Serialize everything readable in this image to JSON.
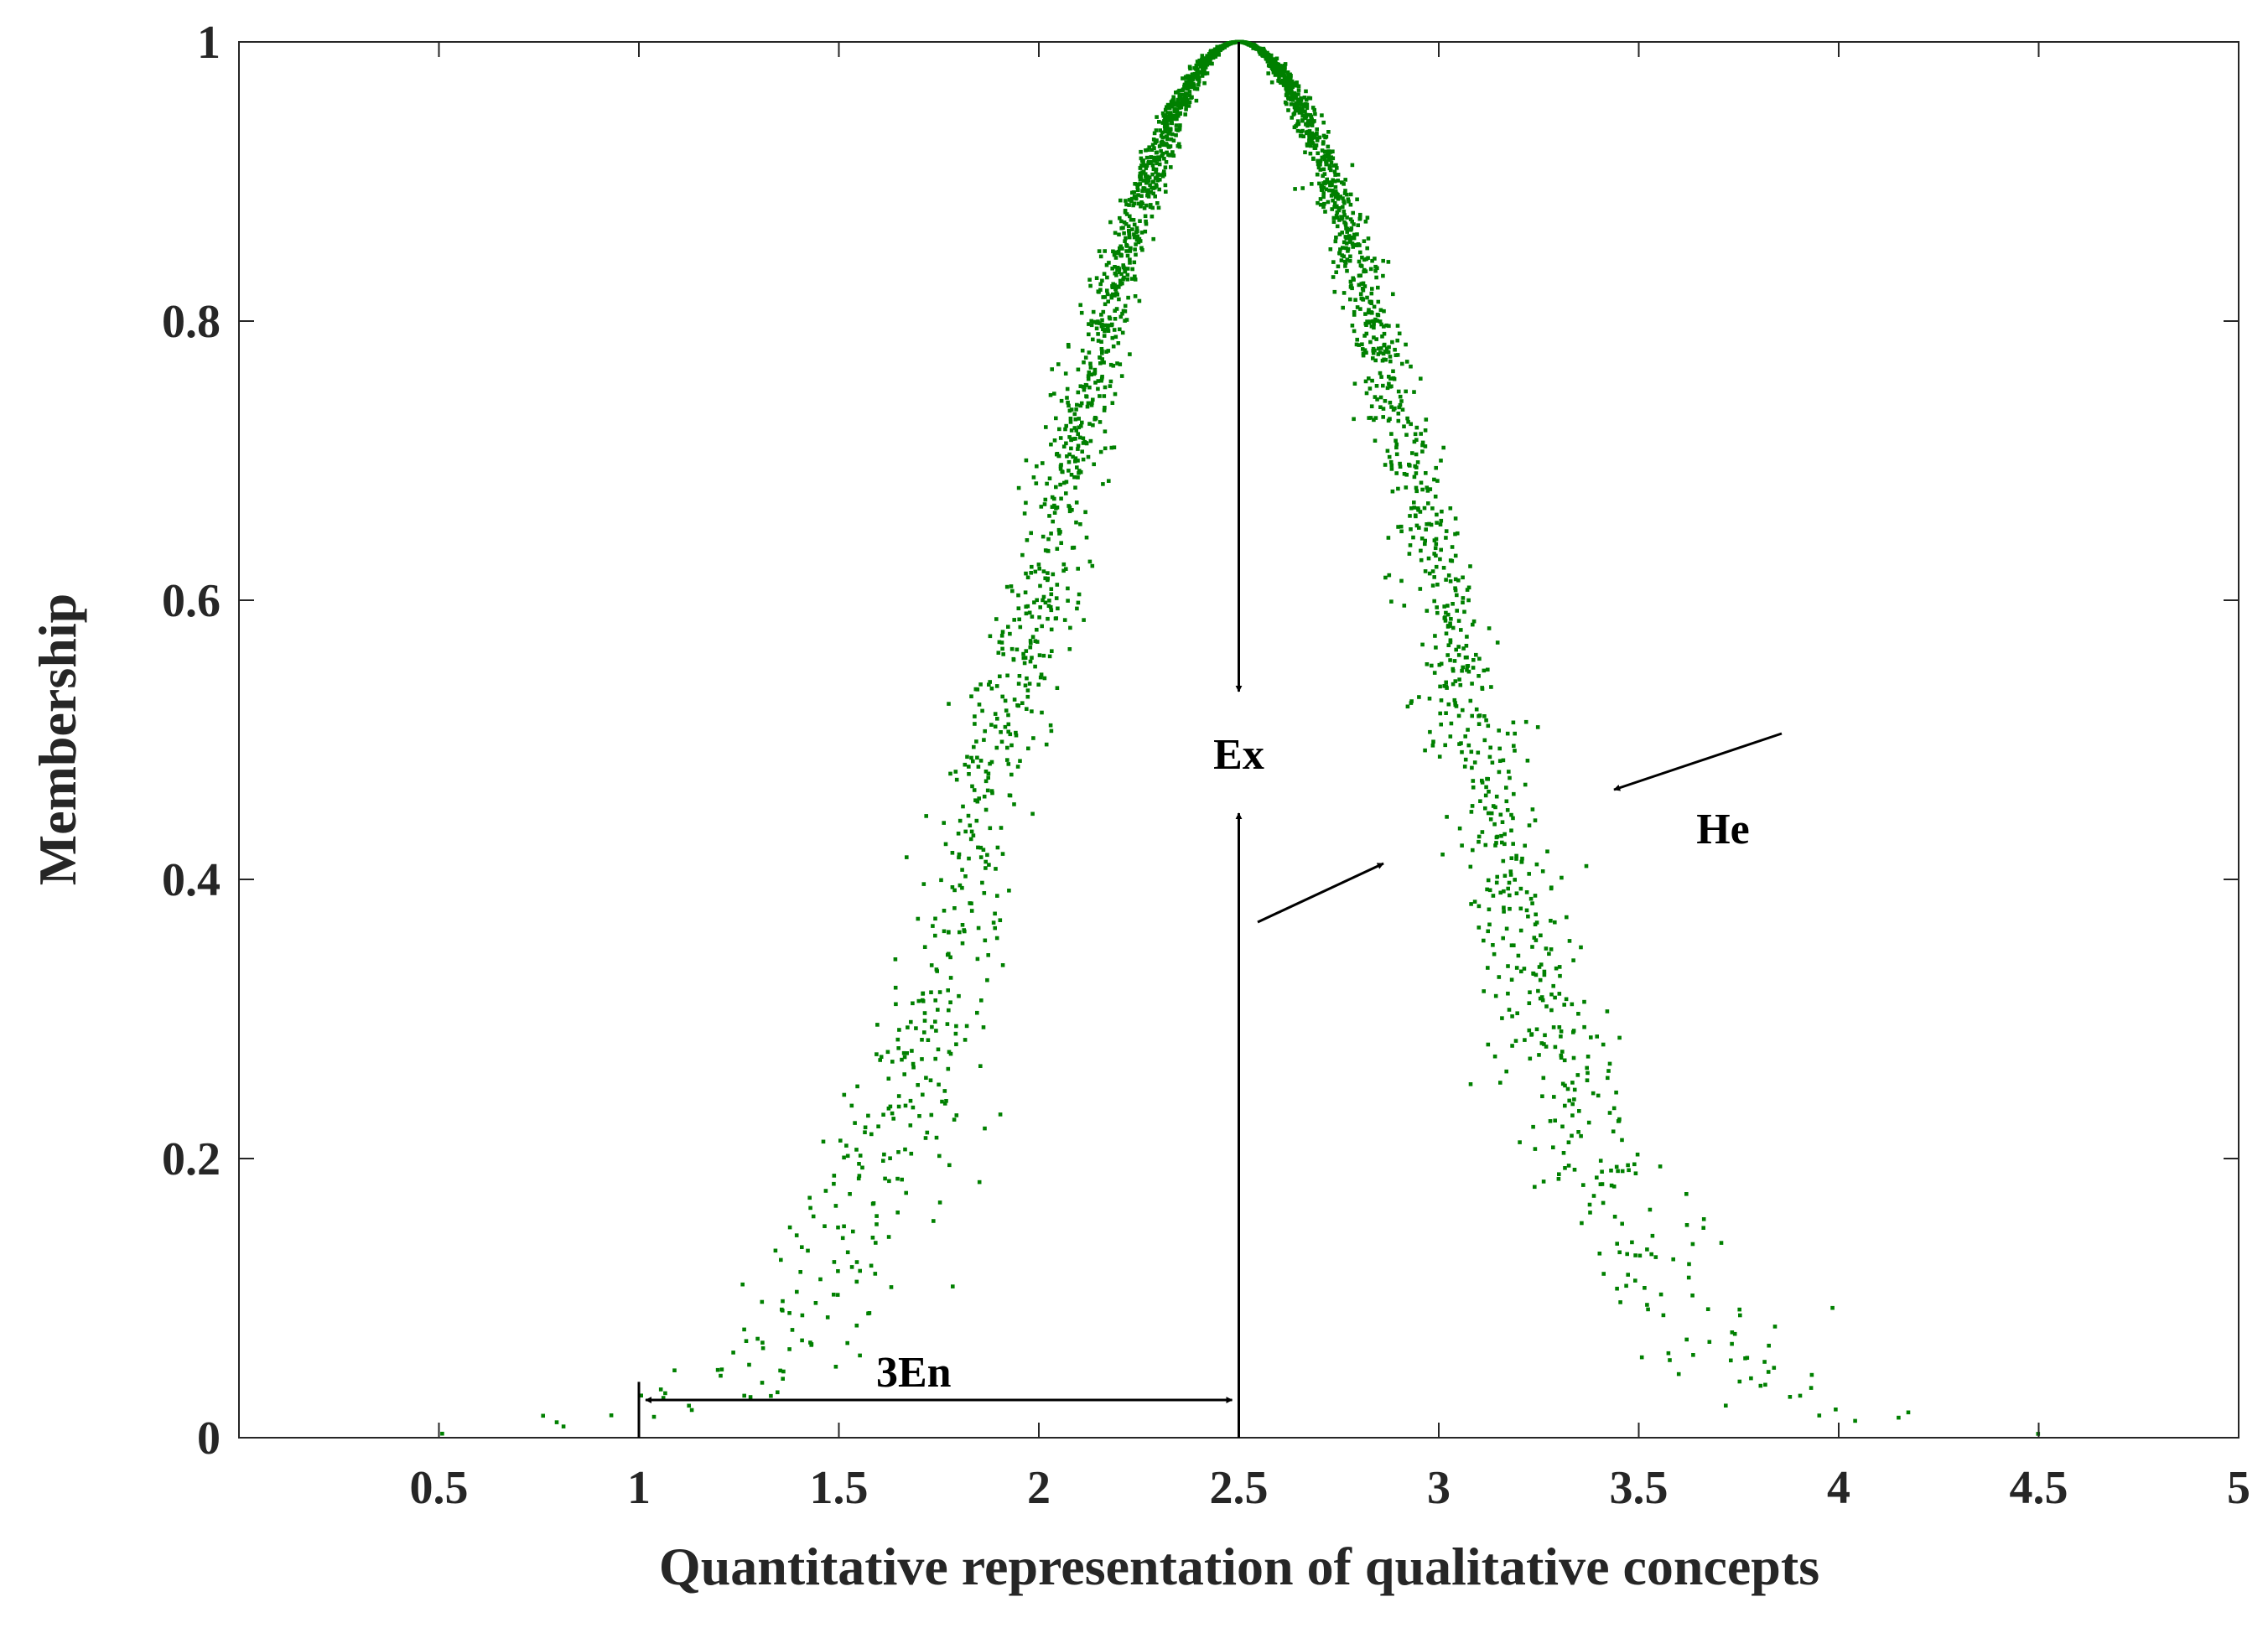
{
  "chart_data": {
    "type": "scatter",
    "title": "",
    "xlabel": "Quantitative representation of qualitative concepts",
    "ylabel": "Membership",
    "xlim": [
      0,
      5
    ],
    "ylim": [
      0,
      1
    ],
    "x_ticks": [
      0.5,
      1,
      1.5,
      2,
      2.5,
      3,
      3.5,
      4,
      4.5,
      5
    ],
    "x_tick_labels": [
      "0.5",
      "1",
      "1.5",
      "2",
      "2.5",
      "3",
      "3.5",
      "4",
      "4.5",
      "5"
    ],
    "y_ticks": [
      0,
      0.2,
      0.4,
      0.6,
      0.8,
      1
    ],
    "y_tick_labels": [
      "0",
      "0.2",
      "0.4",
      "0.6",
      "0.8",
      "1"
    ],
    "grid": false,
    "marker_color": "#008000",
    "cloud_model": {
      "Ex": 2.5,
      "En": 0.5,
      "He": 0.05,
      "n_drops": 3000
    },
    "annotations": {
      "ex_label": "Ex",
      "en_label": "3En",
      "he_label": "He",
      "ex_arrow_x": 2.5,
      "en_arrow_from": 1.0,
      "en_arrow_to": 2.5,
      "en_arrow_y": 0.027
    }
  },
  "colors": {
    "axis": "#262626",
    "points": "#008000",
    "annotation": "#000000"
  }
}
